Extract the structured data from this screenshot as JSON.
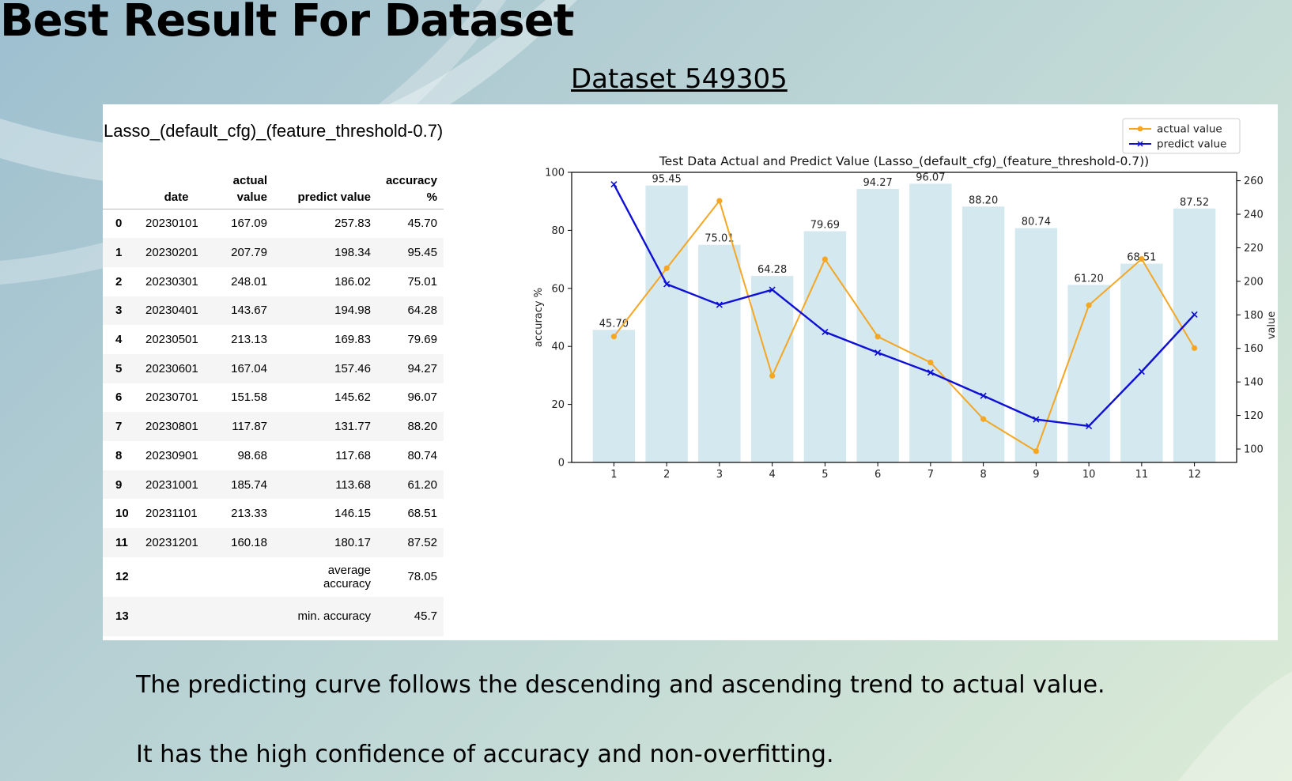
{
  "slide_title": "Best Result For Dataset",
  "dataset_title": "Dataset 549305",
  "table": {
    "title": "Lasso_(default_cfg)_(feature_threshold-0.7)",
    "headers": {
      "date": "date",
      "actual": "actual value",
      "predict": "predict value",
      "accuracy": "accuracy %"
    },
    "rows": [
      {
        "idx": "0",
        "date": "20230101",
        "actual": "167.09",
        "predict": "257.83",
        "accuracy": "45.70"
      },
      {
        "idx": "1",
        "date": "20230201",
        "actual": "207.79",
        "predict": "198.34",
        "accuracy": "95.45"
      },
      {
        "idx": "2",
        "date": "20230301",
        "actual": "248.01",
        "predict": "186.02",
        "accuracy": "75.01"
      },
      {
        "idx": "3",
        "date": "20230401",
        "actual": "143.67",
        "predict": "194.98",
        "accuracy": "64.28"
      },
      {
        "idx": "4",
        "date": "20230501",
        "actual": "213.13",
        "predict": "169.83",
        "accuracy": "79.69"
      },
      {
        "idx": "5",
        "date": "20230601",
        "actual": "167.04",
        "predict": "157.46",
        "accuracy": "94.27"
      },
      {
        "idx": "6",
        "date": "20230701",
        "actual": "151.58",
        "predict": "145.62",
        "accuracy": "96.07"
      },
      {
        "idx": "7",
        "date": "20230801",
        "actual": "117.87",
        "predict": "131.77",
        "accuracy": "88.20"
      },
      {
        "idx": "8",
        "date": "20230901",
        "actual": "98.68",
        "predict": "117.68",
        "accuracy": "80.74"
      },
      {
        "idx": "9",
        "date": "20231001",
        "actual": "185.74",
        "predict": "113.68",
        "accuracy": "61.20"
      },
      {
        "idx": "10",
        "date": "20231101",
        "actual": "213.33",
        "predict": "146.15",
        "accuracy": "68.51"
      },
      {
        "idx": "11",
        "date": "20231201",
        "actual": "160.18",
        "predict": "180.17",
        "accuracy": "87.52"
      }
    ],
    "summary": [
      {
        "idx": "12",
        "label": "average accuracy",
        "value": "78.05"
      },
      {
        "idx": "13",
        "label": "min. accuracy",
        "value": "45.7"
      }
    ]
  },
  "chart_data": {
    "type": "bar",
    "title": "Test Data Actual and Predict Value (Lasso_(default_cfg)_(feature_threshold-0.7))",
    "categories": [
      "1",
      "2",
      "3",
      "4",
      "5",
      "6",
      "7",
      "8",
      "9",
      "10",
      "11",
      "12"
    ],
    "ylabel": "accuracy %",
    "y2label": "value",
    "ylim": [
      0,
      100
    ],
    "y2lim": [
      92,
      265
    ],
    "yticks": [
      0,
      20,
      40,
      60,
      80,
      100
    ],
    "y2ticks": [
      100,
      120,
      140,
      160,
      180,
      200,
      220,
      240,
      260
    ],
    "grid": false,
    "legend_position": "top-right",
    "bar_color": "#d3e8ef",
    "series": [
      {
        "name": "accuracy %",
        "kind": "bar",
        "values": [
          45.7,
          95.45,
          75.01,
          64.28,
          79.69,
          94.27,
          96.07,
          88.2,
          80.74,
          61.2,
          68.51,
          87.52
        ]
      },
      {
        "name": "actual value",
        "kind": "line",
        "axis": "right",
        "color": "#f5a623",
        "marker": "o",
        "values": [
          167.09,
          207.79,
          248.01,
          143.67,
          213.13,
          167.04,
          151.58,
          117.87,
          98.68,
          185.74,
          213.33,
          160.18
        ]
      },
      {
        "name": "predict value",
        "kind": "line",
        "axis": "right",
        "color": "#0f0fd6",
        "marker": "x",
        "values": [
          257.83,
          198.34,
          186.02,
          194.98,
          169.83,
          157.46,
          145.62,
          131.77,
          117.68,
          113.68,
          146.15,
          180.17
        ]
      }
    ]
  },
  "notes": [
    "The predicting curve follows the descending and ascending trend to actual value.",
    "It has the high confidence of accuracy and non-overfitting."
  ]
}
